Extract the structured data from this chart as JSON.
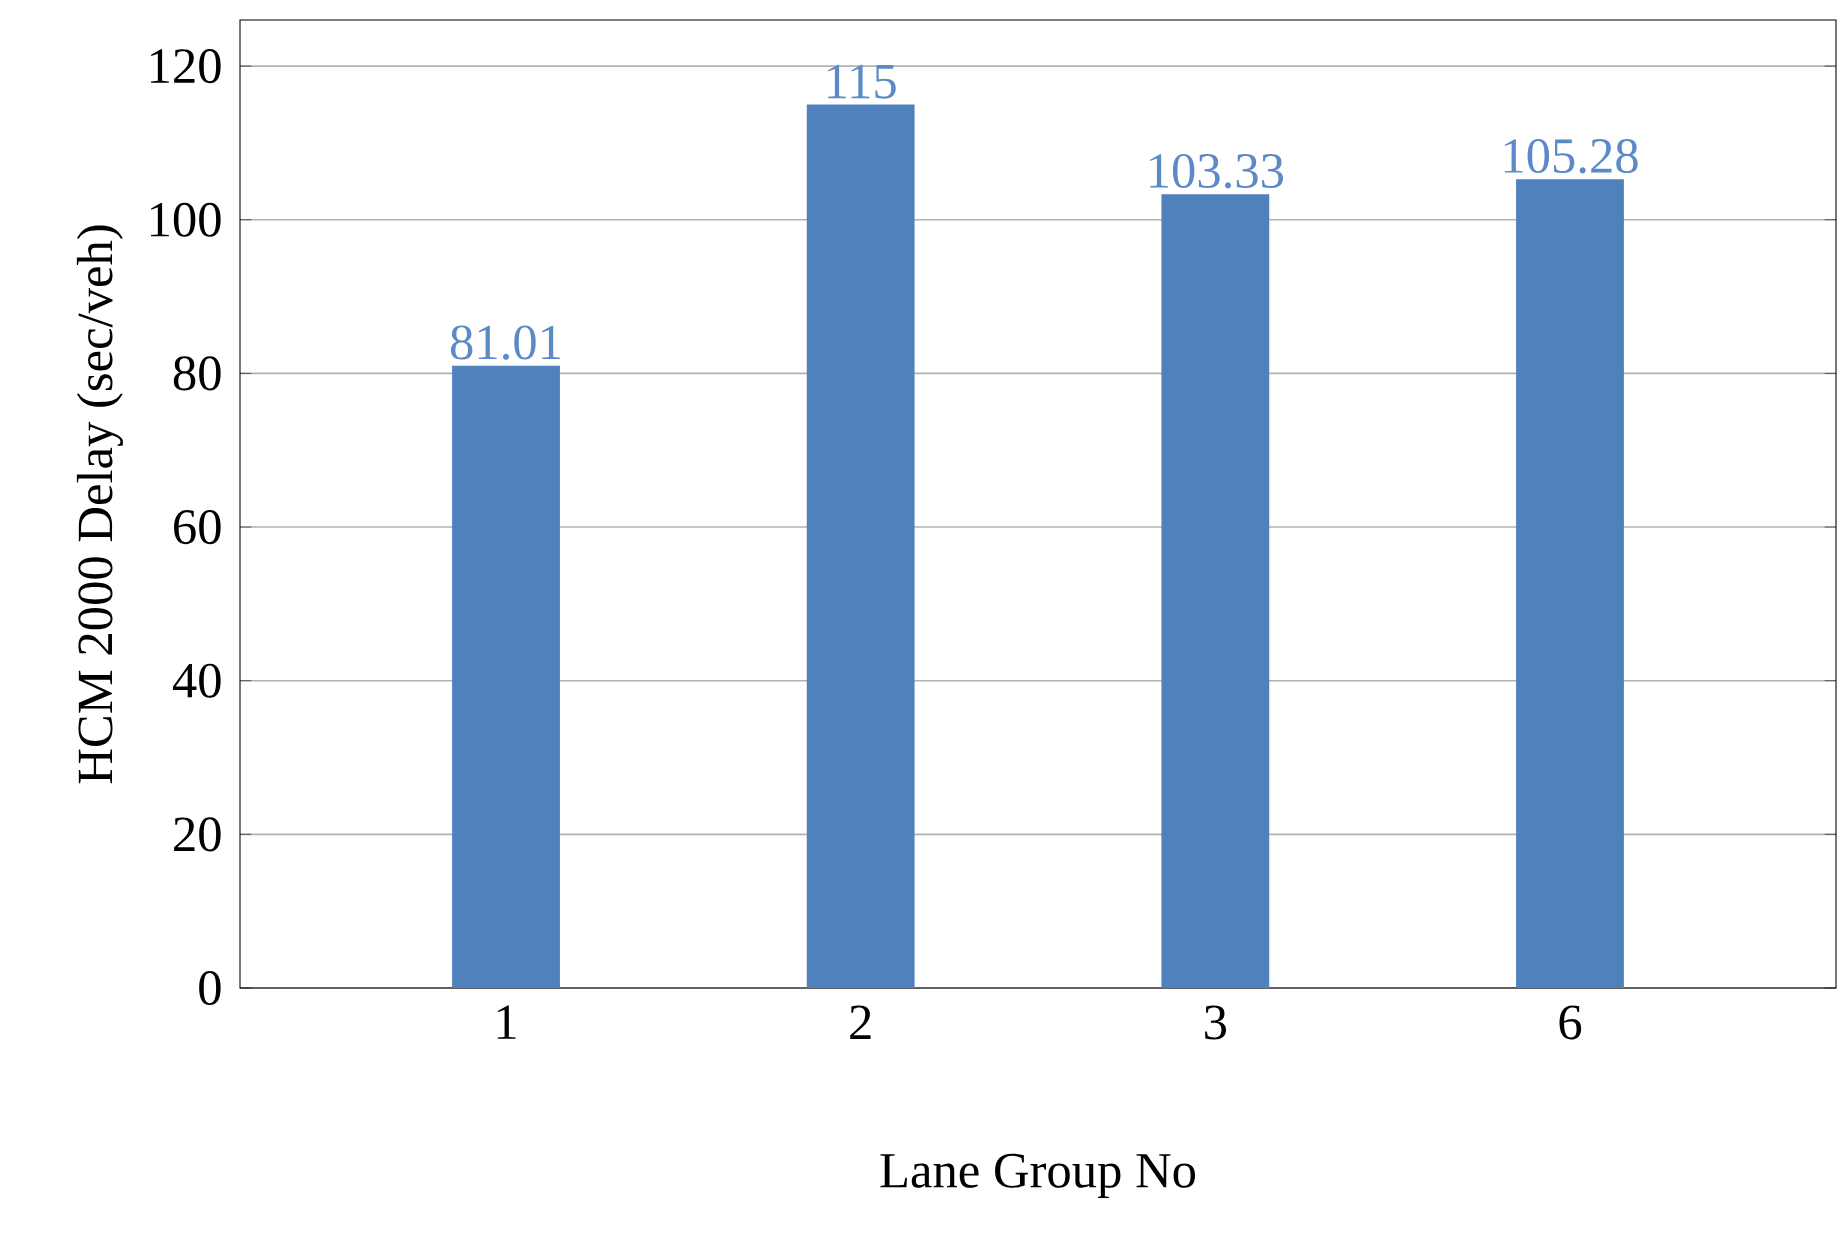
{
  "chart_data": {
    "type": "bar",
    "xlabel": "Lane Group No",
    "ylabel": "HCM 2000 Delay (sec/veh)",
    "categories": [
      "1",
      "2",
      "3",
      "6"
    ],
    "values": [
      81.01,
      115,
      103.33,
      105.28
    ],
    "value_labels": [
      "81.01",
      "115",
      "103.33",
      "105.28"
    ],
    "color": "#4f81bd",
    "ylim": [
      0,
      126
    ],
    "yticks": [
      0,
      20,
      40,
      60,
      80,
      100,
      120
    ],
    "grid": "y"
  }
}
